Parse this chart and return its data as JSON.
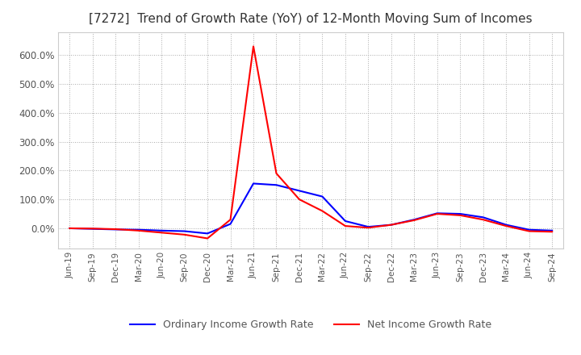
{
  "title": "[7272]  Trend of Growth Rate (YoY) of 12-Month Moving Sum of Incomes",
  "legend_labels": [
    "Ordinary Income Growth Rate",
    "Net Income Growth Rate"
  ],
  "line_colors": [
    "#0000FF",
    "#FF0000"
  ],
  "ylim": [
    -70,
    680
  ],
  "yticks": [
    0,
    100,
    200,
    300,
    400,
    500,
    600
  ],
  "ytick_labels": [
    "0.0%",
    "100.0%",
    "200.0%",
    "300.0%",
    "400.0%",
    "500.0%",
    "600.0%"
  ],
  "x_labels": [
    "Jun-19",
    "Sep-19",
    "Dec-19",
    "Mar-20",
    "Jun-20",
    "Sep-20",
    "Dec-20",
    "Mar-21",
    "Jun-21",
    "Sep-21",
    "Dec-21",
    "Mar-22",
    "Jun-22",
    "Sep-22",
    "Dec-22",
    "Mar-23",
    "Jun-23",
    "Sep-23",
    "Dec-23",
    "Mar-24",
    "Jun-24",
    "Sep-24"
  ],
  "ordinary_income": [
    0,
    -2,
    -4,
    -5,
    -8,
    -10,
    -18,
    15,
    155,
    150,
    130,
    110,
    25,
    5,
    12,
    30,
    52,
    50,
    38,
    12,
    -5,
    -8
  ],
  "net_income": [
    0,
    -1,
    -3,
    -8,
    -15,
    -22,
    -35,
    30,
    630,
    190,
    100,
    60,
    8,
    2,
    12,
    28,
    50,
    45,
    30,
    8,
    -10,
    -12
  ],
  "background_color": "#FFFFFF",
  "grid_color": "#AAAAAA",
  "title_color": "#333333",
  "line_width": 1.5
}
